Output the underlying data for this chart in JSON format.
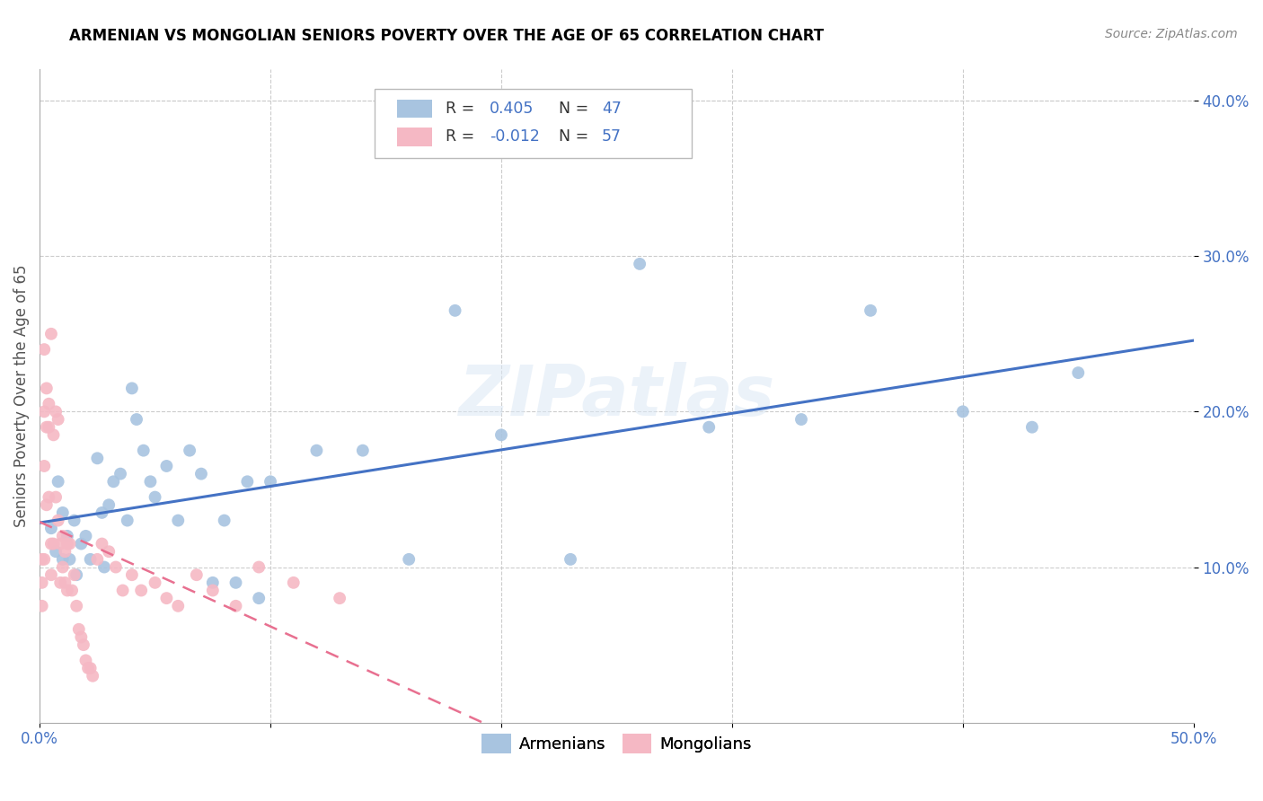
{
  "title": "ARMENIAN VS MONGOLIAN SENIORS POVERTY OVER THE AGE OF 65 CORRELATION CHART",
  "source": "Source: ZipAtlas.com",
  "ylabel": "Seniors Poverty Over the Age of 65",
  "xlim": [
    0.0,
    0.5
  ],
  "ylim": [
    0.0,
    0.42
  ],
  "xticks": [
    0.0,
    0.1,
    0.2,
    0.3,
    0.4,
    0.5
  ],
  "yticks": [
    0.1,
    0.2,
    0.3,
    0.4
  ],
  "xticklabels": [
    "0.0%",
    "",
    "",
    "",
    "",
    "50.0%"
  ],
  "yticklabels": [
    "10.0%",
    "20.0%",
    "30.0%",
    "40.0%"
  ],
  "armenian_color": "#a8c4e0",
  "mongolian_color": "#f5b8c4",
  "armenian_R": 0.405,
  "armenian_N": 47,
  "mongolian_R": -0.012,
  "mongolian_N": 57,
  "armenian_line_color": "#4472c4",
  "mongolian_line_color": "#e87090",
  "watermark": "ZIPatlas",
  "armenian_x": [
    0.005,
    0.007,
    0.008,
    0.01,
    0.01,
    0.012,
    0.013,
    0.015,
    0.016,
    0.018,
    0.02,
    0.022,
    0.025,
    0.027,
    0.028,
    0.03,
    0.032,
    0.035,
    0.038,
    0.04,
    0.042,
    0.045,
    0.048,
    0.05,
    0.055,
    0.06,
    0.065,
    0.07,
    0.075,
    0.08,
    0.085,
    0.09,
    0.095,
    0.1,
    0.12,
    0.14,
    0.16,
    0.18,
    0.2,
    0.23,
    0.26,
    0.29,
    0.33,
    0.36,
    0.4,
    0.43,
    0.45
  ],
  "armenian_y": [
    0.125,
    0.11,
    0.155,
    0.135,
    0.105,
    0.12,
    0.105,
    0.13,
    0.095,
    0.115,
    0.12,
    0.105,
    0.17,
    0.135,
    0.1,
    0.14,
    0.155,
    0.16,
    0.13,
    0.215,
    0.195,
    0.175,
    0.155,
    0.145,
    0.165,
    0.13,
    0.175,
    0.16,
    0.09,
    0.13,
    0.09,
    0.155,
    0.08,
    0.155,
    0.175,
    0.175,
    0.105,
    0.265,
    0.185,
    0.105,
    0.295,
    0.19,
    0.195,
    0.265,
    0.2,
    0.19,
    0.225
  ],
  "mongolian_x": [
    0.001,
    0.001,
    0.001,
    0.002,
    0.002,
    0.002,
    0.002,
    0.003,
    0.003,
    0.003,
    0.004,
    0.004,
    0.004,
    0.005,
    0.005,
    0.005,
    0.006,
    0.006,
    0.007,
    0.007,
    0.008,
    0.008,
    0.009,
    0.009,
    0.01,
    0.01,
    0.011,
    0.011,
    0.012,
    0.012,
    0.013,
    0.014,
    0.015,
    0.016,
    0.017,
    0.018,
    0.019,
    0.02,
    0.021,
    0.022,
    0.023,
    0.025,
    0.027,
    0.03,
    0.033,
    0.036,
    0.04,
    0.044,
    0.05,
    0.055,
    0.06,
    0.068,
    0.075,
    0.085,
    0.095,
    0.11,
    0.13
  ],
  "mongolian_y": [
    0.105,
    0.09,
    0.075,
    0.24,
    0.2,
    0.165,
    0.105,
    0.215,
    0.19,
    0.14,
    0.205,
    0.19,
    0.145,
    0.25,
    0.115,
    0.095,
    0.185,
    0.115,
    0.2,
    0.145,
    0.195,
    0.13,
    0.115,
    0.09,
    0.12,
    0.1,
    0.11,
    0.09,
    0.115,
    0.085,
    0.115,
    0.085,
    0.095,
    0.075,
    0.06,
    0.055,
    0.05,
    0.04,
    0.035,
    0.035,
    0.03,
    0.105,
    0.115,
    0.11,
    0.1,
    0.085,
    0.095,
    0.085,
    0.09,
    0.08,
    0.075,
    0.095,
    0.085,
    0.075,
    0.1,
    0.09,
    0.08
  ]
}
